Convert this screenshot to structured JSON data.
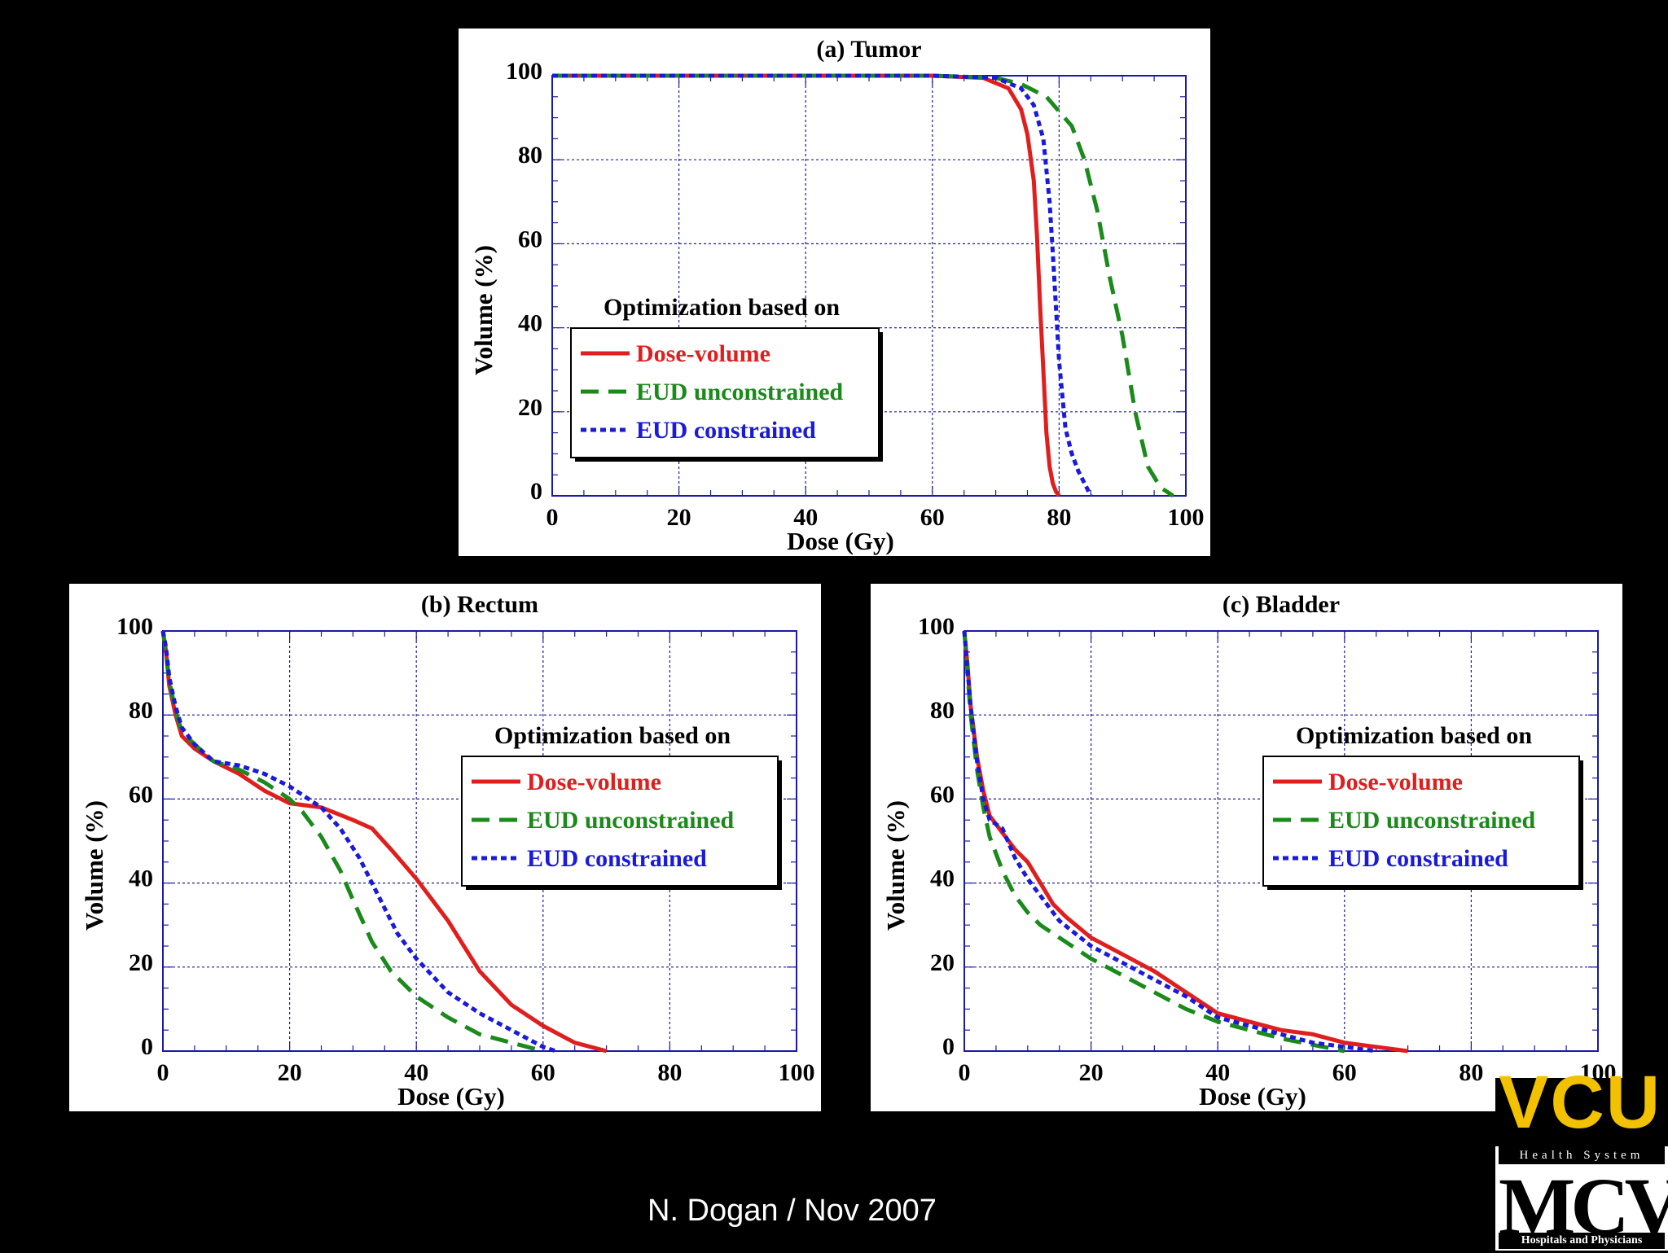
{
  "footer": {
    "text": "N. Dogan / Nov 2007"
  },
  "logo": {
    "vcu": "VCU",
    "health_system": "Health System",
    "mcv": "MCV",
    "hospitals": "Hospitals and Physicians"
  },
  "colors": {
    "dose_volume": "#e01e1e",
    "eud_unconstrained": "#1a8a1a",
    "eud_constrained": "#1a1adb",
    "axes": "#1a1aa8"
  },
  "chart_data": [
    {
      "type": "line",
      "title": "(a) Tumor",
      "xlabel": "Dose (Gy)",
      "ylabel": "Volume (%)",
      "xlim": [
        0,
        100
      ],
      "ylim": [
        0,
        100
      ],
      "xticks": [
        "0",
        "20",
        "40",
        "60",
        "80",
        "100"
      ],
      "yticks": [
        "0",
        "20",
        "40",
        "60",
        "80",
        "100"
      ],
      "grid": true,
      "legend": {
        "position": "middle-left",
        "title": "Optimization based on",
        "entries": [
          "Dose-volume",
          "EUD unconstrained",
          "EUD constrained"
        ]
      },
      "series": [
        {
          "name": "Dose-volume",
          "style": "solid",
          "x": [
            0,
            60,
            68,
            72,
            74,
            75,
            76,
            76.5,
            77,
            77.5,
            78,
            78.5,
            79,
            79.5,
            80
          ],
          "y": [
            100,
            100,
            99.5,
            97,
            92,
            86,
            75,
            62,
            45,
            30,
            15,
            7,
            3,
            1,
            0
          ]
        },
        {
          "name": "EUD unconstrained",
          "style": "dashed",
          "x": [
            0,
            60,
            70,
            74,
            78,
            82,
            84,
            86,
            88,
            90,
            92,
            94,
            96,
            98
          ],
          "y": [
            100,
            100,
            99.5,
            98,
            95,
            88,
            80,
            68,
            52,
            38,
            20,
            7,
            2,
            0
          ]
        },
        {
          "name": "EUD constrained",
          "style": "dotted",
          "x": [
            0,
            60,
            70,
            74,
            76,
            77.5,
            78.5,
            79,
            79.5,
            80,
            81,
            82,
            83,
            84,
            85
          ],
          "y": [
            100,
            100,
            99.5,
            97,
            93,
            85,
            70,
            58,
            45,
            32,
            16,
            10,
            6,
            3,
            0
          ]
        }
      ]
    },
    {
      "type": "line",
      "title": "(b) Rectum",
      "xlabel": "Dose (Gy)",
      "ylabel": "Volume (%)",
      "xlim": [
        0,
        100
      ],
      "ylim": [
        0,
        100
      ],
      "xticks": [
        "0",
        "20",
        "40",
        "60",
        "80",
        "100"
      ],
      "yticks": [
        "0",
        "20",
        "40",
        "60",
        "80",
        "100"
      ],
      "grid": true,
      "legend": {
        "position": "top-right",
        "title": "Optimization based on",
        "entries": [
          "Dose-volume",
          "EUD unconstrained",
          "EUD constrained"
        ]
      },
      "series": [
        {
          "name": "Dose-volume",
          "style": "solid",
          "x": [
            0,
            0.5,
            1,
            2,
            3,
            5,
            8,
            12,
            16,
            20,
            25,
            30,
            33,
            36,
            40,
            45,
            50,
            55,
            60,
            65,
            70
          ],
          "y": [
            100,
            95,
            87,
            80,
            75,
            72,
            69,
            66,
            62,
            59,
            58,
            55,
            53,
            48,
            41,
            31,
            19,
            11,
            6,
            2,
            0
          ]
        },
        {
          "name": "EUD unconstrained",
          "style": "dashed",
          "x": [
            0,
            0.5,
            1,
            2,
            3,
            5,
            8,
            12,
            16,
            20,
            22,
            25,
            28,
            30,
            33,
            36,
            40,
            45,
            50,
            55,
            60
          ],
          "y": [
            100,
            95,
            88,
            81,
            76,
            73,
            69,
            67,
            64,
            60,
            57,
            51,
            43,
            36,
            26,
            19,
            13,
            8,
            4,
            2,
            0
          ]
        },
        {
          "name": "EUD constrained",
          "style": "dotted",
          "x": [
            0,
            0.5,
            1,
            2,
            3,
            5,
            8,
            12,
            16,
            20,
            25,
            28,
            31,
            34,
            37,
            40,
            45,
            50,
            55,
            60,
            62
          ],
          "y": [
            100,
            96,
            89,
            82,
            77,
            73,
            69,
            68,
            66,
            63,
            58,
            53,
            46,
            37,
            28,
            22,
            14,
            9,
            5,
            1,
            0
          ]
        }
      ]
    },
    {
      "type": "line",
      "title": "(c) Bladder",
      "xlabel": "Dose (Gy)",
      "ylabel": "Volume (%)",
      "xlim": [
        0,
        100
      ],
      "ylim": [
        0,
        100
      ],
      "xticks": [
        "0",
        "20",
        "40",
        "60",
        "80",
        "100"
      ],
      "yticks": [
        "0",
        "20",
        "40",
        "60",
        "80",
        "100"
      ],
      "grid": true,
      "legend": {
        "position": "top-right",
        "title": "Optimization based on",
        "entries": [
          "Dose-volume",
          "EUD unconstrained",
          "EUD constrained"
        ]
      },
      "series": [
        {
          "name": "Dose-volume",
          "style": "solid",
          "x": [
            0,
            0.5,
            1,
            2,
            3,
            4,
            6,
            8,
            10,
            12,
            14,
            16,
            20,
            25,
            30,
            35,
            38,
            40,
            45,
            50,
            55,
            60,
            65,
            70
          ],
          "y": [
            100,
            92,
            82,
            70,
            62,
            56,
            52,
            48,
            45,
            40,
            35,
            32,
            27,
            23,
            19,
            14,
            11,
            9,
            7,
            5,
            4,
            2,
            1,
            0
          ]
        },
        {
          "name": "EUD unconstrained",
          "style": "dashed",
          "x": [
            0,
            0.5,
            1,
            2,
            3,
            4,
            6,
            8,
            10,
            12,
            15,
            20,
            25,
            30,
            35,
            40,
            45,
            50,
            55,
            60
          ],
          "y": [
            100,
            90,
            80,
            67,
            58,
            51,
            43,
            37,
            33,
            30,
            27,
            22,
            18,
            14,
            10,
            7,
            5,
            3,
            1.5,
            0
          ]
        },
        {
          "name": "EUD constrained",
          "style": "dotted",
          "x": [
            0,
            0.5,
            1,
            2,
            3,
            4,
            6,
            8,
            10,
            12,
            15,
            20,
            25,
            30,
            35,
            40,
            45,
            50,
            55,
            60,
            65
          ],
          "y": [
            100,
            91,
            82,
            69,
            60,
            55,
            53,
            46,
            41,
            37,
            31,
            25,
            21,
            17,
            13,
            8,
            6,
            4,
            2,
            1,
            0
          ]
        }
      ]
    }
  ]
}
